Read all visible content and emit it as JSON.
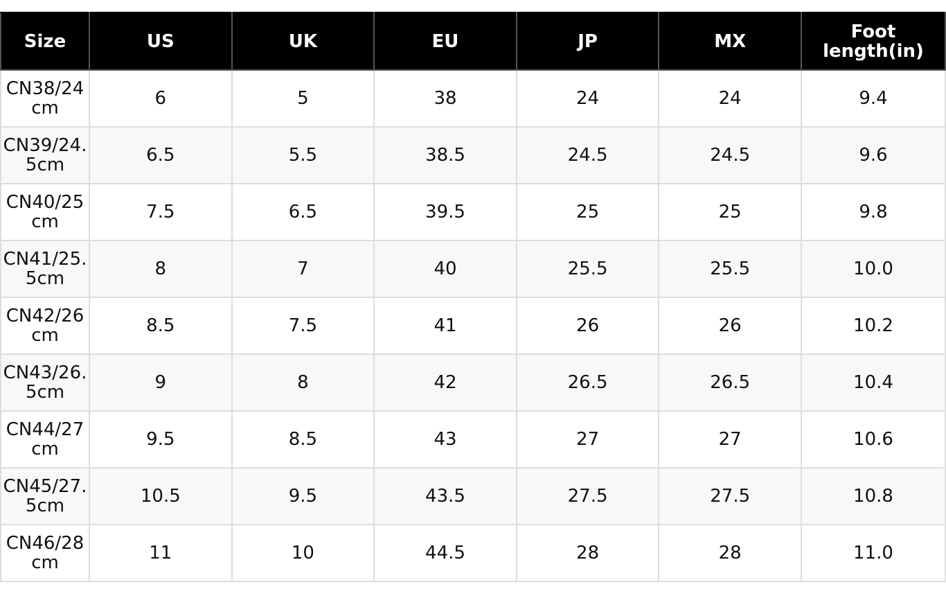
{
  "table": {
    "header": [
      "Size",
      "US",
      "UK",
      "EU",
      "JP",
      "MX",
      "Foot length(in)"
    ],
    "rows": [
      [
        "CN38/24cm",
        "6",
        "5",
        "38",
        "24",
        "24",
        "9.4"
      ],
      [
        "CN39/24.5cm",
        "6.5",
        "5.5",
        "38.5",
        "24.5",
        "24.5",
        "9.6"
      ],
      [
        "CN40/25cm",
        "7.5",
        "6.5",
        "39.5",
        "25",
        "25",
        "9.8"
      ],
      [
        "CN41/25.5cm",
        "8",
        "7",
        "40",
        "25.5",
        "25.5",
        "10.0"
      ],
      [
        "CN42/26cm",
        "8.5",
        "7.5",
        "41",
        "26",
        "26",
        "10.2"
      ],
      [
        "CN43/26.5cm",
        "9",
        "8",
        "42",
        "26.5",
        "26.5",
        "10.4"
      ],
      [
        "CN44/27cm",
        "9.5",
        "8.5",
        "43",
        "27",
        "27",
        "10.6"
      ],
      [
        "CN45/27.5cm",
        "10.5",
        "9.5",
        "43.5",
        "27.5",
        "27.5",
        "10.8"
      ],
      [
        "CN46/28cm",
        "11",
        "10",
        "44.5",
        "28",
        "28",
        "11.0"
      ]
    ]
  }
}
